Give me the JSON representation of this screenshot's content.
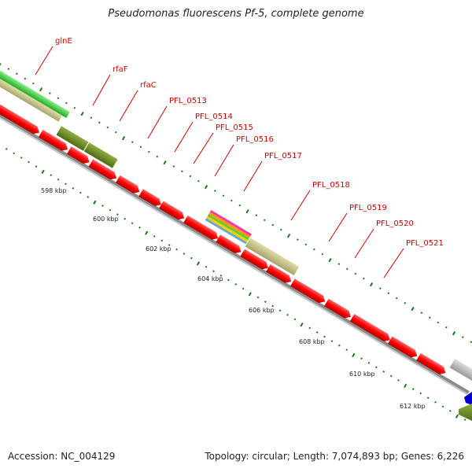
{
  "title": "Pseudomonas fluorescens Pf-5, complete genome",
  "footer": {
    "accession": "Accession: NC_004129",
    "stats": "Topology: circular; Length: 7,074,893 bp; Genes: 6,226"
  },
  "colors": {
    "cds_forward": "#ff0000",
    "gene_olive": "#6b8e23",
    "gene_khaki": "#c8c48a",
    "gene_green": "#33cc33",
    "tick": "#1a7a1a",
    "label": "#cc0000",
    "backbone": "#999999"
  },
  "gene_labels": [
    "glnE",
    "rfaF",
    "rfaC",
    "PFL_0513",
    "PFL_0514",
    "PFL_0515",
    "PFL_0516",
    "PFL_0517",
    "PFL_0518",
    "PFL_0519",
    "PFL_0520",
    "PFL_0521"
  ],
  "scale_labels": [
    "598 kbp",
    "600 kbp",
    "602 kbp",
    "604 kbp",
    "606 kbp",
    "608 kbp",
    "610 kbp",
    "612 kbp"
  ]
}
